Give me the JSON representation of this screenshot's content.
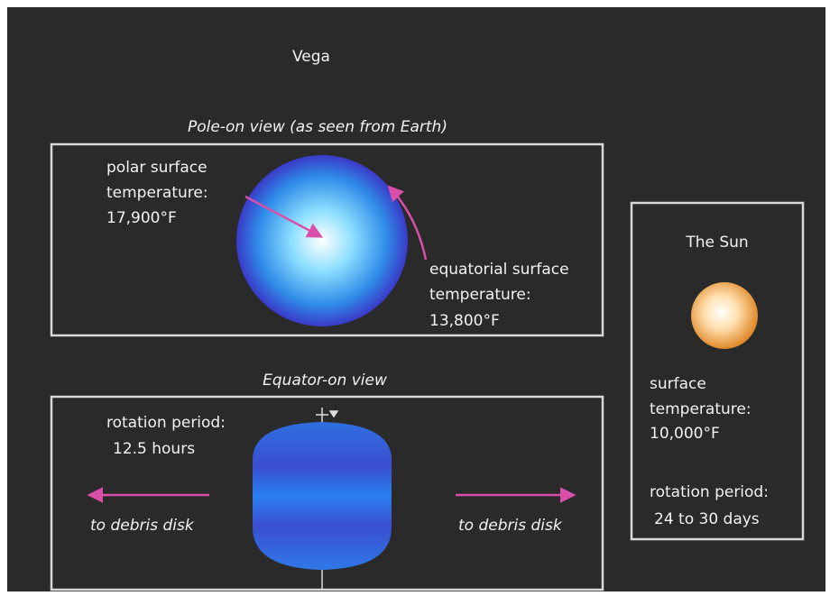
{
  "title": "Vega",
  "pole_on": {
    "heading": "Pole-on view  (as seen from Earth)",
    "polar_label": [
      "polar surface",
      "temperature:",
      "17,900°F"
    ],
    "equatorial_label": [
      "equatorial surface",
      "temperature:",
      "13,800°F"
    ]
  },
  "equator_on": {
    "heading": "Equator-on view",
    "rotation_label": [
      "rotation period:",
      "12.5 hours"
    ],
    "left_arrow_label": "to debris disk",
    "right_arrow_label": "to debris disk"
  },
  "sun": {
    "heading": "The Sun",
    "temperature_label": [
      "surface",
      "temperature:",
      "10,000°F"
    ],
    "rotation_label": [
      "rotation period:",
      "24 to 30 days"
    ]
  }
}
